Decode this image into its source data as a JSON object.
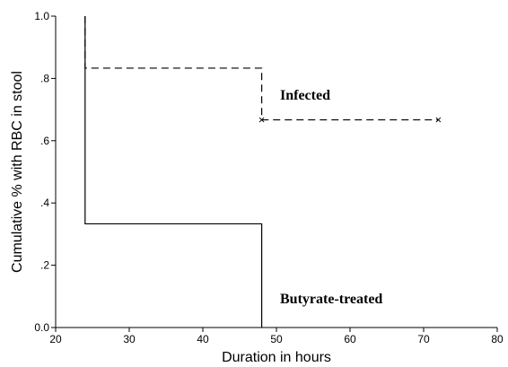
{
  "chart_data": {
    "type": "line",
    "subtype": "step",
    "title": "",
    "xlabel": "Duration in hours",
    "ylabel": "Cumulative % with RBC in stool",
    "xlim": [
      20,
      80
    ],
    "ylim": [
      0,
      1
    ],
    "xticks": [
      20,
      30,
      40,
      50,
      60,
      70,
      80
    ],
    "xtick_labels": [
      "20",
      "30",
      "40",
      "50",
      "60",
      "70",
      "80"
    ],
    "yticks": [
      0,
      0.2,
      0.4,
      0.6,
      0.8,
      1.0
    ],
    "ytick_labels": [
      "0.0",
      ".2",
      ".4",
      ".6",
      ".8",
      "1.0"
    ],
    "grid": false,
    "series": [
      {
        "name": "Infected",
        "line_style": "dashed",
        "color": "#000000",
        "x": [
          24,
          24,
          48,
          48,
          72
        ],
        "y": [
          1.0,
          0.833,
          0.833,
          0.667,
          0.667
        ],
        "censored": [
          [
            48,
            0.667
          ],
          [
            72,
            0.667
          ]
        ]
      },
      {
        "name": "Butyrate-treated",
        "line_style": "solid",
        "color": "#000000",
        "x": [
          24,
          24,
          48,
          48
        ],
        "y": [
          1.0,
          0.333,
          0.333,
          0.0
        ],
        "censored": []
      }
    ]
  }
}
